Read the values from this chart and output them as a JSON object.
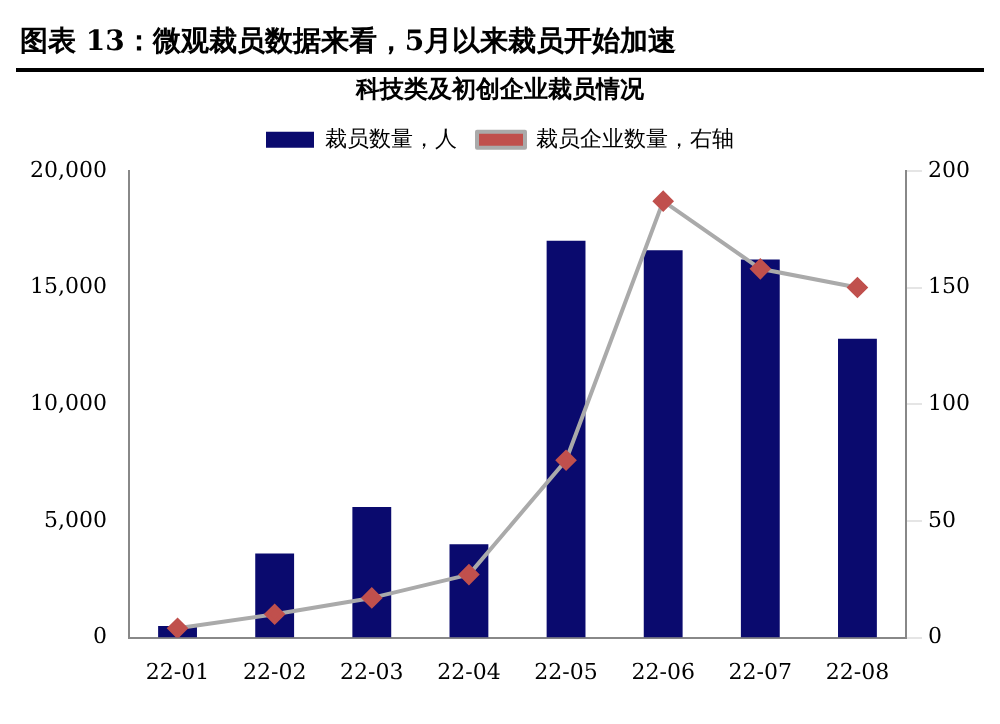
{
  "chart_data": {
    "type": "bar",
    "title": "图表 13：微观裁员数据来看，5月以来裁员开始加速",
    "subtitle": "科技类及初创企业裁员情况",
    "categories": [
      "22-01",
      "22-02",
      "22-03",
      "22-04",
      "22-05",
      "22-06",
      "22-07",
      "22-08"
    ],
    "series": [
      {
        "name": "裁员数量，人",
        "color": "#0a0a6e",
        "values": [
          500,
          3600,
          5600,
          4000,
          17000,
          16600,
          16200,
          12800
        ]
      },
      {
        "name": "裁员企业数量，右轴",
        "type": "line",
        "axis": "y2",
        "color": "#aaaaaa",
        "marker": "diamond",
        "values": [
          4,
          10,
          17,
          27,
          76,
          187,
          158,
          150
        ]
      }
    ],
    "ylim": [
      0,
      20000
    ],
    "yticks": [
      {
        "value": 0,
        "label": "0"
      },
      {
        "value": 5000,
        "label": "5,000"
      },
      {
        "value": 10000,
        "label": "10,000"
      },
      {
        "value": 15000,
        "label": "15,000"
      },
      {
        "value": 20000,
        "label": "20,000"
      }
    ],
    "y2lim": [
      0,
      200
    ],
    "y2ticks": [
      0,
      50,
      100,
      150,
      200
    ],
    "grid": false,
    "legend": "top"
  }
}
